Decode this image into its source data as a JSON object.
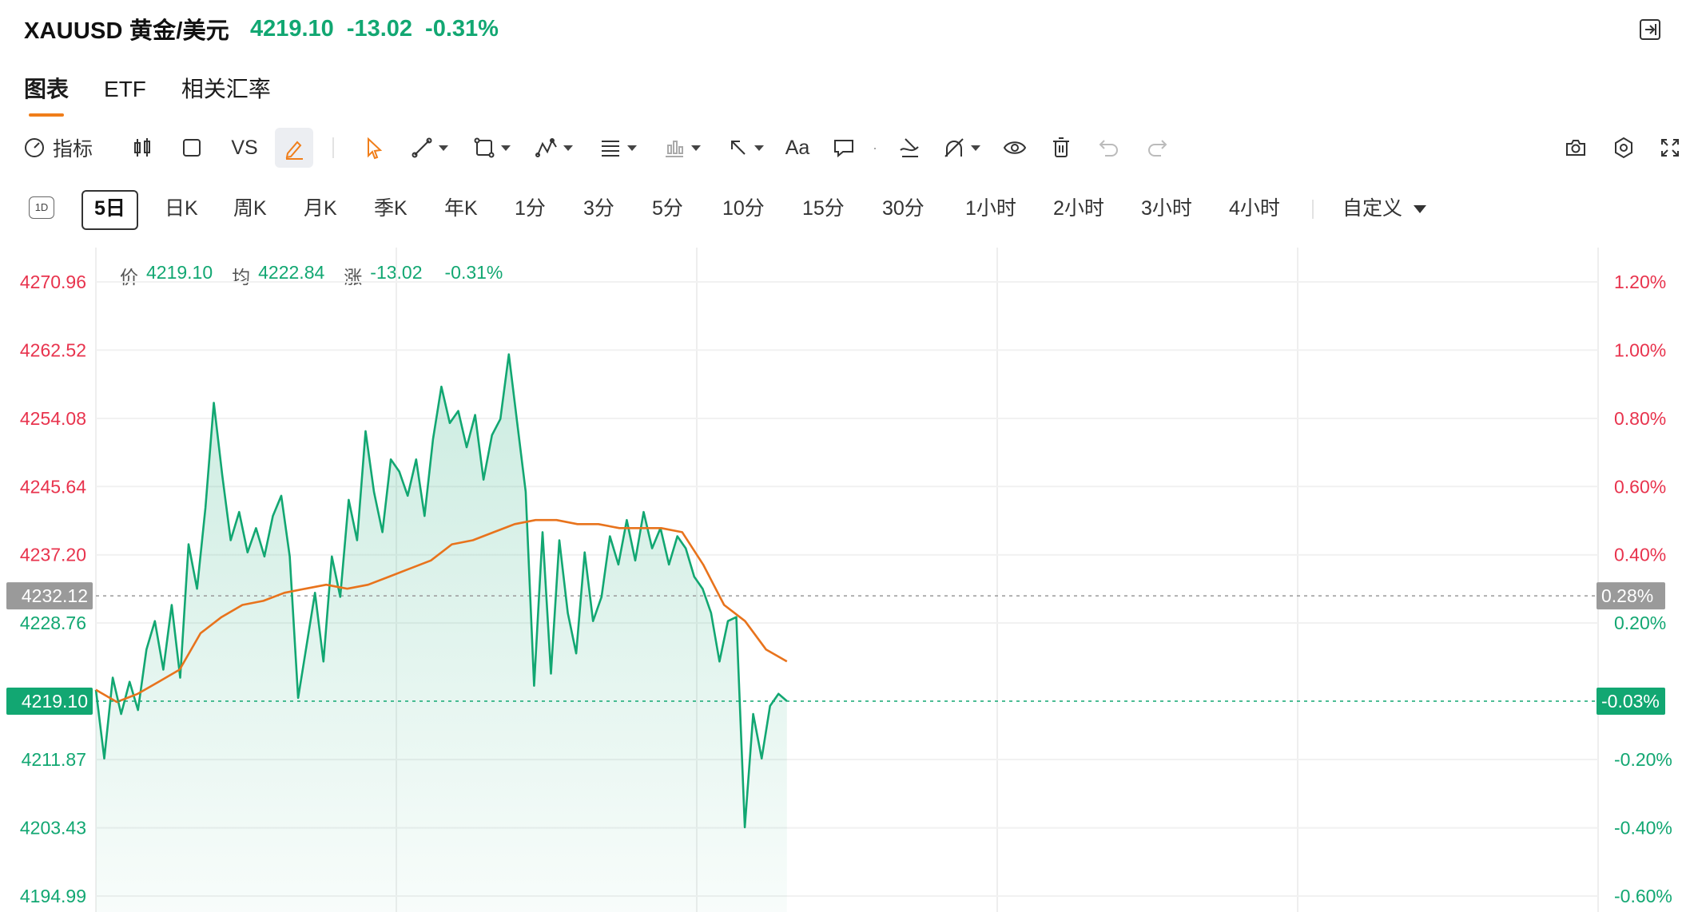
{
  "header": {
    "title": "XAUUSD 黄金/美元",
    "price": "4219.10",
    "change": "-13.02",
    "change_pct": "-0.31%"
  },
  "tabs": [
    {
      "label": "图表",
      "active": true
    },
    {
      "label": "ETF",
      "active": false
    },
    {
      "label": "相关汇率",
      "active": false
    }
  ],
  "toolbar": {
    "indicator_label": "指标",
    "vs_label": "VS",
    "text_label": "Aa",
    "icons": [
      "indicator-icon",
      "candlestick-icon",
      "square-icon",
      "vs-button",
      "pencil-icon",
      "cursor-icon",
      "line-tool-icon",
      "shape-tool-icon",
      "pattern-tool-icon",
      "fib-tool-icon",
      "range-tool-icon",
      "arrow-tool-icon",
      "text-tool-icon",
      "comment-icon",
      "brush-icon",
      "magnet-icon",
      "eye-icon",
      "trash-icon",
      "undo-icon",
      "redo-icon",
      "camera-icon",
      "settings-icon",
      "fullscreen-icon"
    ]
  },
  "periods": {
    "badge_1d": "1D",
    "items": [
      "5日",
      "日K",
      "周K",
      "月K",
      "季K",
      "年K",
      "1分",
      "3分",
      "5分",
      "10分",
      "15分",
      "30分",
      "1小时",
      "2小时",
      "3小时",
      "4小时"
    ],
    "selected": "5日",
    "custom_label": "自定义"
  },
  "legend": {
    "price_key": "价",
    "price_val": "4219.10",
    "avg_key": "均",
    "avg_val": "4222.84",
    "chg_key": "涨",
    "chg_val": "-13.02",
    "chg_pct": "-0.31%"
  },
  "colors": {
    "up_red": "#e8334d",
    "down_green": "#12a772",
    "avg_orange": "#e8731c",
    "ref_gray": "#999999",
    "accent_orange": "#f07e1a"
  },
  "chart_data": {
    "type": "area",
    "y_left_ticks": [
      "4270.96",
      "4262.52",
      "4254.08",
      "4245.64",
      "4237.20",
      "4228.76",
      "4211.87",
      "4203.43",
      "4194.99"
    ],
    "y_right_ticks": [
      "1.20%",
      "1.00%",
      "0.80%",
      "0.60%",
      "0.40%",
      "0.20%",
      "-0.20%",
      "-0.40%",
      "-0.60%"
    ],
    "ylim": [
      4194.99,
      4270.96
    ],
    "reference_price": "4232.12",
    "reference_pct": "0.28%",
    "current_price": "4219.10",
    "current_pct": "-0.03%",
    "grid": true,
    "day_sessions": 5,
    "day_sessions_with_data": 2.3,
    "price_series": [
      4220.5,
      4212.0,
      4222.0,
      4217.5,
      4221.5,
      4218.0,
      4225.5,
      4229.0,
      4223.0,
      4231.0,
      4222.0,
      4238.5,
      4233.0,
      4243.0,
      4256.0,
      4247.0,
      4239.0,
      4242.5,
      4237.5,
      4240.5,
      4237.0,
      4242.0,
      4244.5,
      4237.0,
      4219.5,
      4226.0,
      4232.5,
      4224.0,
      4237.0,
      4232.0,
      4244.0,
      4239.0,
      4252.5,
      4245.0,
      4240.0,
      4249.0,
      4247.5,
      4244.5,
      4249.0,
      4242.0,
      4251.5,
      4258.0,
      4253.5,
      4255.0,
      4250.5,
      4254.5,
      4246.5,
      4252.0,
      4254.0,
      4262.0,
      4253.5,
      4245.0,
      4221.0,
      4240.0,
      4222.5,
      4239.0,
      4230.0,
      4225.0,
      4237.5,
      4229.0,
      4232.0,
      4239.5,
      4236.0,
      4241.5,
      4236.5,
      4242.5,
      4238.0,
      4240.5,
      4236.0,
      4239.5,
      4238.0,
      4234.5,
      4233.0,
      4230.0,
      4224.0,
      4229.0,
      4229.5,
      4203.5,
      4217.5,
      4212.0,
      4218.5,
      4220.0,
      4219.1
    ],
    "avg_series": [
      4220.5,
      4219.0,
      4220.0,
      4221.5,
      4223.0,
      4227.5,
      4229.5,
      4231.0,
      4231.5,
      4232.5,
      4233.0,
      4233.5,
      4233.0,
      4233.5,
      4234.5,
      4235.5,
      4236.5,
      4238.5,
      4239.0,
      4240.0,
      4241.0,
      4241.5,
      4241.5,
      4241.0,
      4241.0,
      4240.5,
      4240.5,
      4240.5,
      4240.0,
      4236.0,
      4231.0,
      4229.0,
      4225.5,
      4224.0
    ]
  }
}
